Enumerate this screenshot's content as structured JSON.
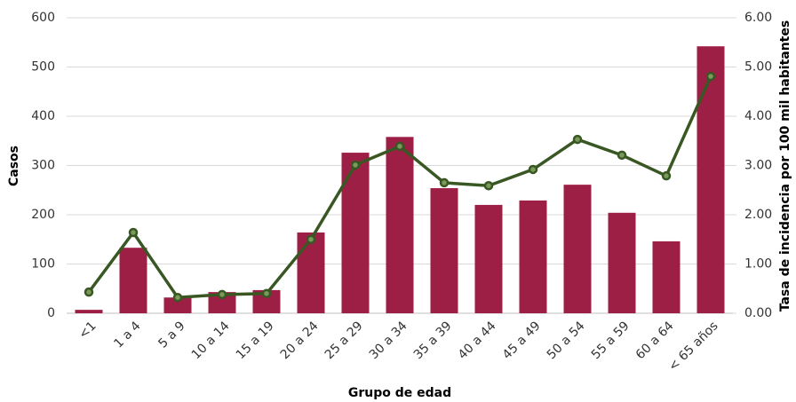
{
  "chart_data": {
    "type": "bar-line",
    "x_label": "Grupo de edad",
    "y_label": "Casos",
    "y2_label": "Tasa de incidencia por 100 mil habitantes",
    "categories": [
      "<1",
      "1 a 4",
      "5 a 9",
      "10 a 14",
      "15 a 19",
      "20 a 24",
      "25 a 29",
      "30 a 34",
      "35 a 39",
      "40 a 44",
      "45 a 49",
      "50 a 54",
      "55 a 59",
      "60 a 64",
      "< 65 años"
    ],
    "series": [
      {
        "type": "bar",
        "color": "#9e1f45",
        "values": [
          7,
          133,
          32,
          43,
          47,
          164,
          326,
          358,
          254,
          220,
          229,
          261,
          204,
          146,
          542
        ]
      },
      {
        "type": "line",
        "axis": "y2",
        "color": "#385723",
        "values": [
          0.43,
          1.64,
          0.32,
          0.38,
          0.4,
          1.5,
          3.01,
          3.39,
          2.65,
          2.59,
          2.92,
          3.53,
          3.21,
          2.79,
          4.81
        ]
      }
    ],
    "ylim": [
      0,
      600
    ],
    "yticks": [
      0,
      100,
      200,
      300,
      400,
      500,
      600
    ],
    "y2lim": [
      0,
      6
    ],
    "y2ticks": [
      {
        "value": 0,
        "label": "0.00"
      },
      {
        "value": 1,
        "label": "1.00"
      },
      {
        "value": 2,
        "label": "2.00"
      },
      {
        "value": 3,
        "label": "3.00"
      },
      {
        "value": 4,
        "label": "4.00"
      },
      {
        "value": 5,
        "label": "5.00"
      },
      {
        "value": 6,
        "label": "6.00"
      }
    ],
    "grid": true
  }
}
